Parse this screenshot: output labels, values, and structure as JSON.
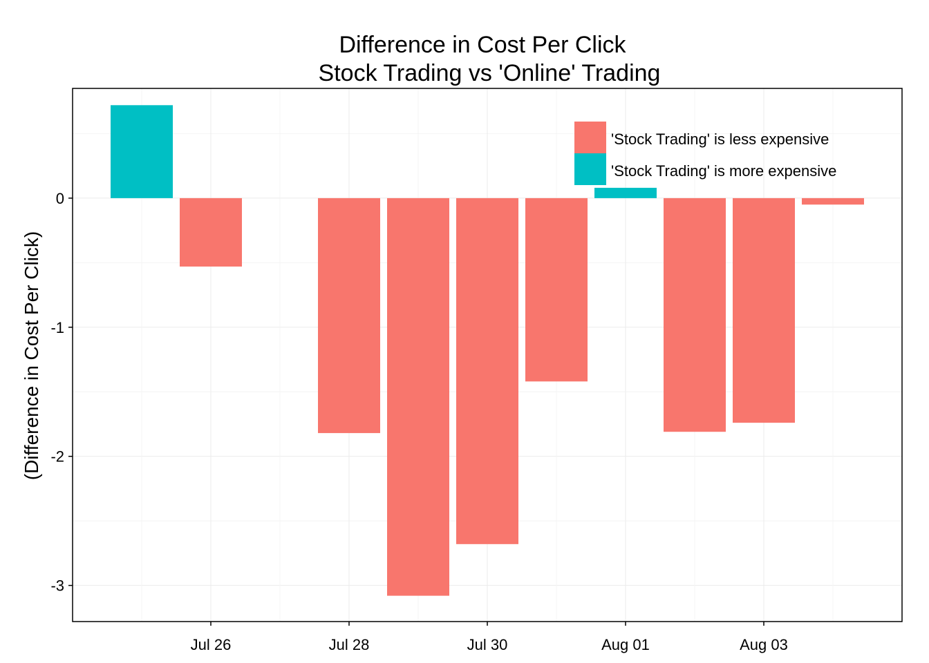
{
  "chart_data": {
    "type": "bar",
    "title_line1": "Difference in Cost Per Click",
    "title_line2": "Stock Trading vs 'Online' Trading",
    "xlabel": "",
    "ylabel": "(Difference in Cost Per Click)",
    "ylim": [
      -3.28,
      0.85
    ],
    "y_ticks": [
      0,
      -1,
      -2,
      -3
    ],
    "y_tick_labels": [
      "0",
      "-1",
      "-2",
      "-3"
    ],
    "x_ticks": [
      "2014-07-26",
      "2014-07-28",
      "2014-07-30",
      "2014-08-01",
      "2014-08-03"
    ],
    "x_tick_labels": [
      "Jul 26",
      "Jul 28",
      "Jul 30",
      "Aug 01",
      "Aug 03"
    ],
    "x_range": [
      "2014-07-24 00:00",
      "2014-08-05 00:00"
    ],
    "grid": true,
    "legend_position": "top-right",
    "series": [
      {
        "name": "'Stock Trading' is less expensive",
        "color": "#F8766D"
      },
      {
        "name": "'Stock Trading' is more expensive",
        "color": "#00BFC4"
      }
    ],
    "bars": [
      {
        "date": "2014-07-25",
        "value": 0.72,
        "group": 1
      },
      {
        "date": "2014-07-26",
        "value": -0.53,
        "group": 0
      },
      {
        "date": "2014-07-28",
        "value": -1.82,
        "group": 0
      },
      {
        "date": "2014-07-29",
        "value": -3.08,
        "group": 0
      },
      {
        "date": "2014-07-30",
        "value": -2.68,
        "group": 0
      },
      {
        "date": "2014-07-31",
        "value": -1.42,
        "group": 0
      },
      {
        "date": "2014-08-01",
        "value": 0.08,
        "group": 1
      },
      {
        "date": "2014-08-02",
        "value": -1.81,
        "group": 0
      },
      {
        "date": "2014-08-03",
        "value": -1.74,
        "group": 0
      },
      {
        "date": "2014-08-04",
        "value": -0.05,
        "group": 0
      }
    ]
  }
}
